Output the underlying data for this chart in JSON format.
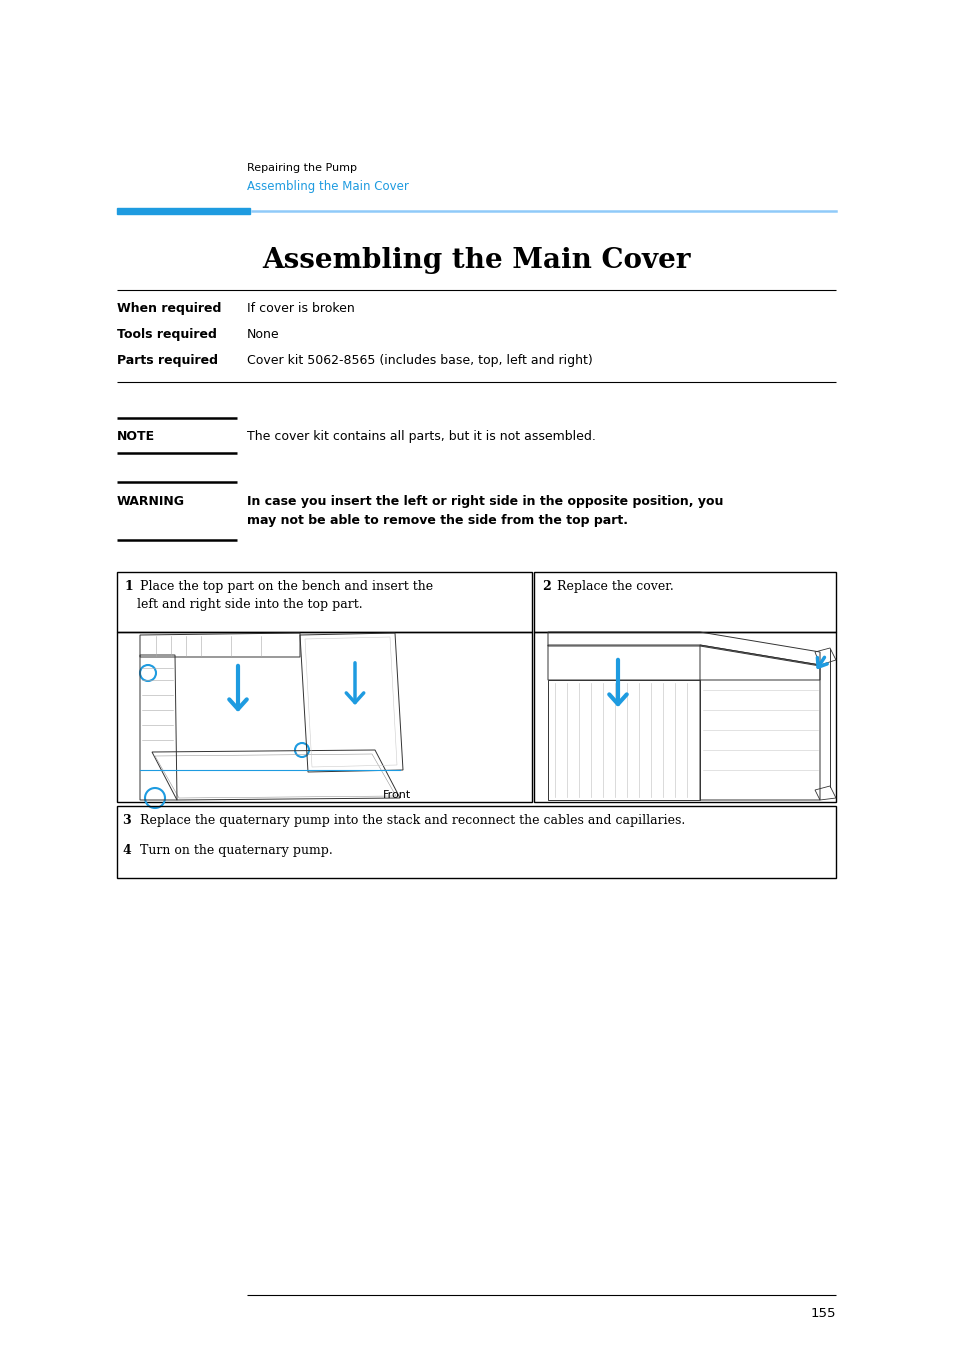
{
  "page_bg": "#ffffff",
  "header_crumb1": "Repairing the Pump",
  "header_crumb2": "Assembling the Main Cover",
  "header_crumb2_color": "#1E9BE0",
  "title": "Assembling the Main Cover",
  "blue_bar_color": "#1E9BE0",
  "blue_line_color": "#90CAF9",
  "table_rows": [
    {
      "label": "When required",
      "value": "If cover is broken"
    },
    {
      "label": "Tools required",
      "value": "None"
    },
    {
      "label": "Parts required",
      "value": "Cover kit 5062-8565 (includes base, top, left and right)"
    }
  ],
  "note_label": "NOTE",
  "note_text": "The cover kit contains all parts, but it is not assembled.",
  "warning_label": "WARNING",
  "warning_line1": "In case you insert the left or right side in the opposite position, you",
  "warning_line2": "may not be able to remove the side from the top part.",
  "step1_bold": "1",
  "step1_line1": " Place the top part on the bench and insert the",
  "step1_line2": "   left and right side into the top part.",
  "step2_bold": "2",
  "step2_rest": " Replace the cover.",
  "step3_num": "3",
  "step3_text": "Replace the quaternary pump into the stack and reconnect the cables and capillaries.",
  "step4_num": "4",
  "step4_text": "Turn on the quaternary pump.",
  "front_label": "Front",
  "page_number": "155",
  "arrow_color": "#1E9BE0",
  "line_color": "#333333"
}
